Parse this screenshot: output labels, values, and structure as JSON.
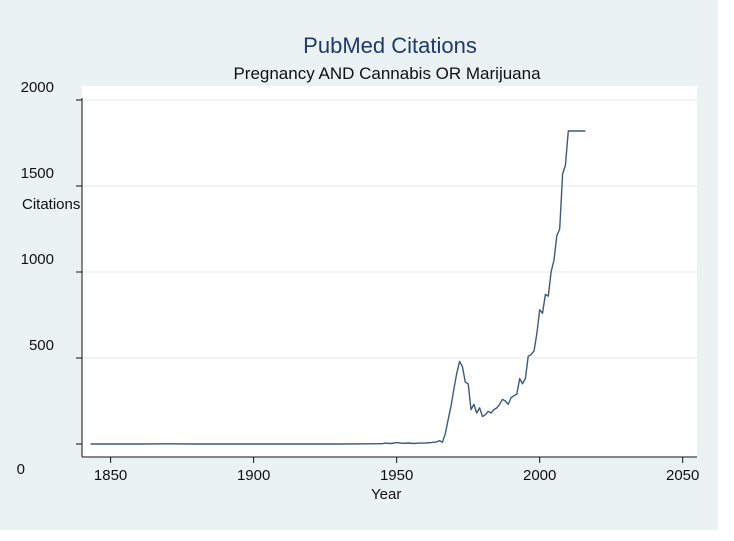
{
  "chart_data": {
    "type": "line",
    "title": "PubMed Citations",
    "subtitle": "Pregnancy AND Cannabis OR Marijuana",
    "xlabel": "Year",
    "ylabel": "Citations",
    "xlim": [
      1840,
      2055
    ],
    "ylim": [
      0,
      2000
    ],
    "xticks": [
      1850,
      1900,
      1950,
      2000,
      2050
    ],
    "yticks": [
      0,
      500,
      1000,
      1500,
      2000
    ],
    "grid": true,
    "series": [
      {
        "color": "#3c5a7d",
        "x": [
          1843,
          1850,
          1860,
          1870,
          1880,
          1890,
          1900,
          1910,
          1920,
          1930,
          1940,
          1945,
          1946,
          1948,
          1950,
          1952,
          1954,
          1956,
          1958,
          1960,
          1962,
          1964,
          1965,
          1966,
          1967,
          1968,
          1969,
          1970,
          1971,
          1972,
          1973,
          1974,
          1975,
          1976,
          1977,
          1978,
          1979,
          1980,
          1981,
          1982,
          1983,
          1984,
          1985,
          1986,
          1987,
          1988,
          1989,
          1990,
          1991,
          1992,
          1993,
          1994,
          1995,
          1996,
          1997,
          1998,
          1999,
          2000,
          2001,
          2002,
          2003,
          2004,
          2005,
          2006,
          2007,
          2008,
          2009,
          2010,
          2011,
          2012,
          2013,
          2014,
          2015,
          2016
        ],
        "y": [
          0,
          0,
          0,
          1,
          0,
          0,
          0,
          0,
          0,
          0,
          1,
          2,
          5,
          3,
          8,
          4,
          6,
          3,
          5,
          6,
          8,
          12,
          20,
          10,
          60,
          140,
          220,
          320,
          410,
          480,
          450,
          360,
          350,
          200,
          230,
          180,
          210,
          160,
          170,
          190,
          180,
          200,
          210,
          230,
          260,
          250,
          230,
          270,
          280,
          290,
          380,
          350,
          380,
          510,
          520,
          540,
          640,
          780,
          760,
          870,
          860,
          1000,
          1070,
          1210,
          1250,
          1570,
          1620,
          1820,
          1820,
          1820,
          1820,
          1820,
          1820,
          1820
        ]
      }
    ]
  }
}
